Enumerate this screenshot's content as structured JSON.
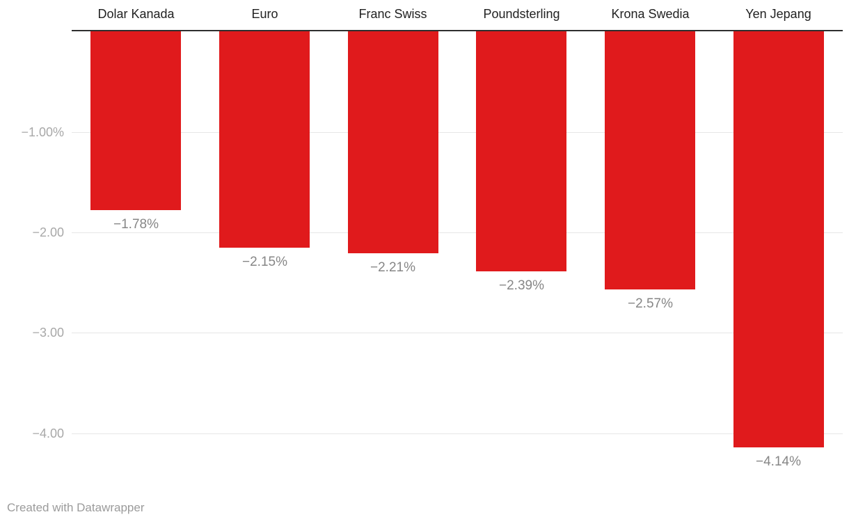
{
  "chart_data": {
    "type": "bar",
    "orientation": "vertical",
    "title": "",
    "xlabel": "",
    "ylabel": "",
    "grid": true,
    "legend": "none",
    "ylim": [
      -4.3,
      0
    ],
    "categories": [
      "Dolar Kanada",
      "Euro",
      "Franc Swiss",
      "Poundsterling",
      "Krona Swedia",
      "Yen Jepang"
    ],
    "values": [
      -1.78,
      -2.15,
      -2.21,
      -2.39,
      -2.57,
      -4.14
    ],
    "value_labels": [
      "−1.78%",
      "−2.15%",
      "−2.21%",
      "−2.39%",
      "−2.57%",
      "−4.14%"
    ],
    "y_ticks": [
      {
        "value": -1,
        "label": "−1.00%"
      },
      {
        "value": -2,
        "label": "−2.00"
      },
      {
        "value": -3,
        "label": "−3.00"
      },
      {
        "value": -4,
        "label": "−4.00"
      }
    ]
  },
  "colors": {
    "bar": "#e01a1c",
    "zero_line": "#2e2e2e",
    "gridline": "#e6e6e6",
    "category_label": "#222222",
    "tick_label": "#a8a8a8",
    "value_label": "#868686",
    "attribution": "#9b9b9b",
    "background": "#ffffff"
  },
  "footer": {
    "attribution": "Created with Datawrapper"
  }
}
